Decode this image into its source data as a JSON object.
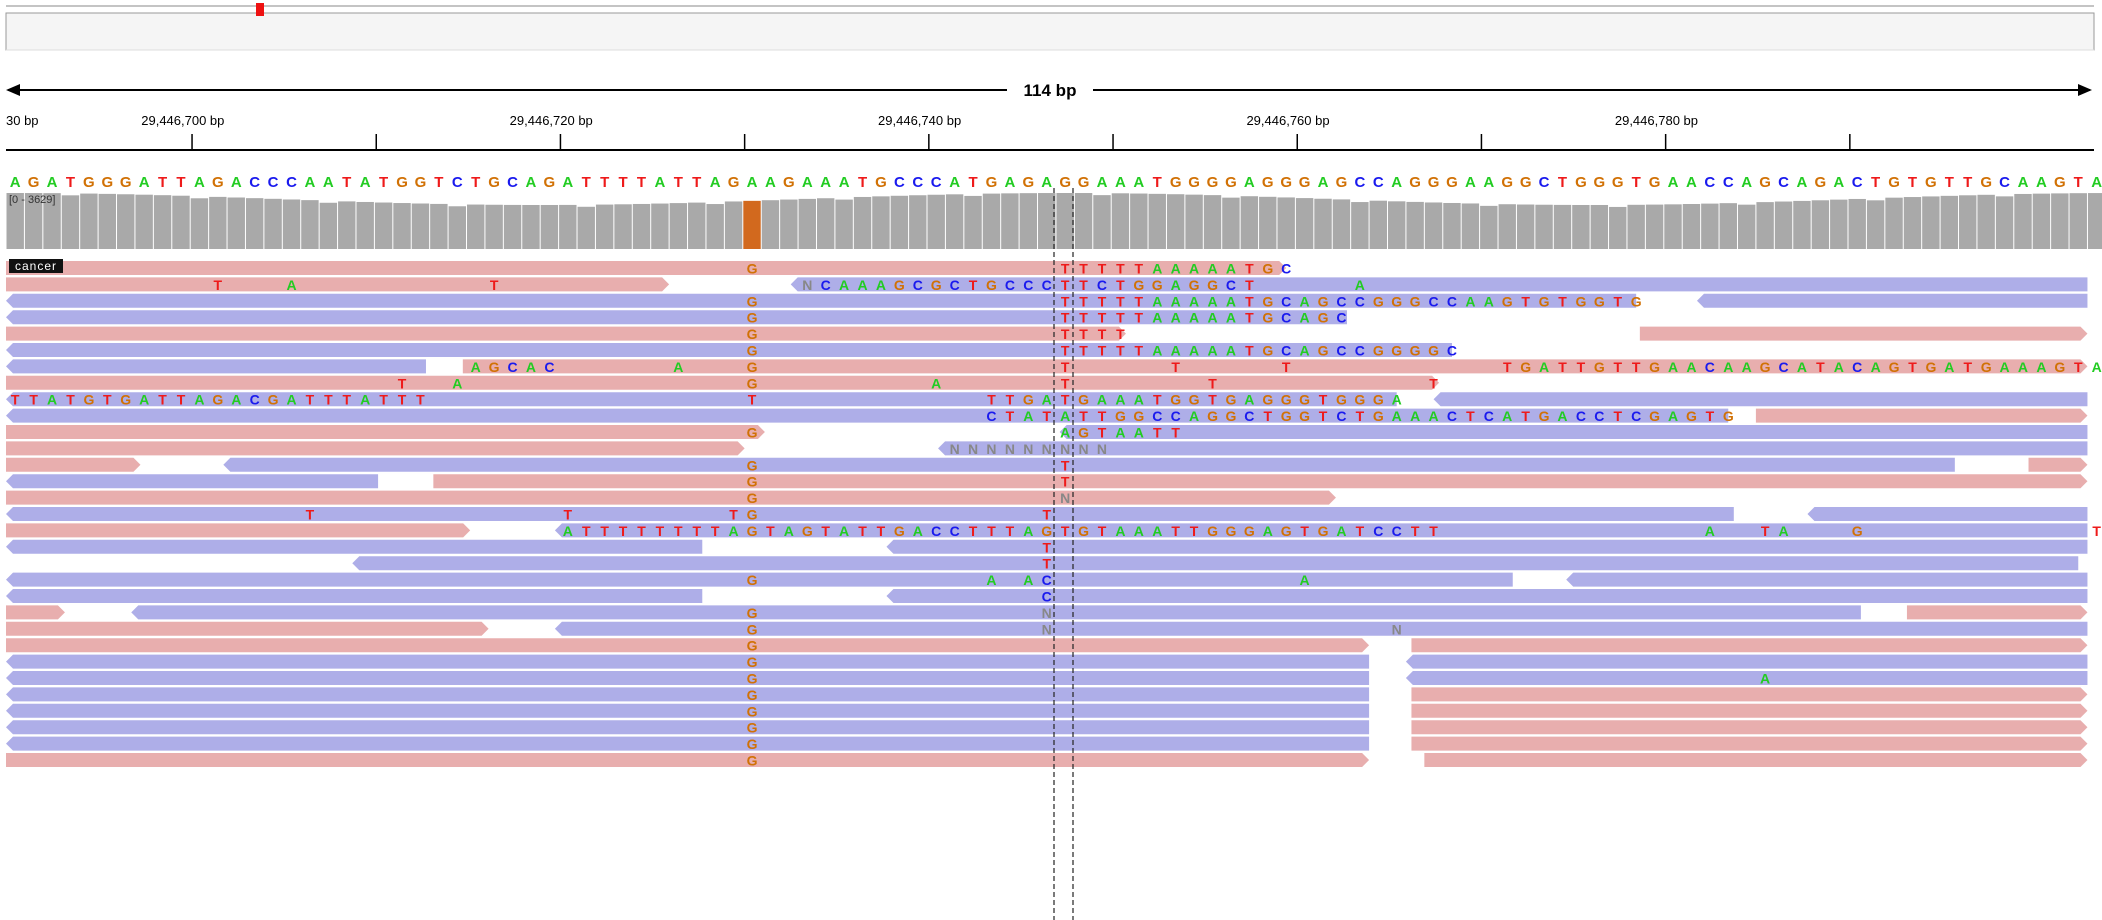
{
  "ruler": {
    "span_label": "114 bp",
    "tick_labels": [
      {
        "text": "30 bp",
        "pos": 29446690.4
      },
      {
        "text": "29,446,700 bp",
        "pos": 29446700
      },
      {
        "text": "29,446,720 bp",
        "pos": 29446720
      },
      {
        "text": "29,446,740 bp",
        "pos": 29446740
      },
      {
        "text": "29,446,760 bp",
        "pos": 29446760
      },
      {
        "text": "29,446,780 bp",
        "pos": 29446780
      }
    ],
    "minor_ticks": [
      29446700,
      29446710,
      29446720,
      29446730,
      29446740,
      29446750,
      29446760,
      29446770,
      29446780,
      29446790
    ]
  },
  "reference_sequence": "AGATGGGATTAGACCCAATATGGTCTGCAGATTTTATTAGAAGAAATGCCCATGAGAGGAAATGGGGAGGGAGCCAGGGAAGGCTGGGTGAACCAGCAGACTGTGTTGCAAGTA",
  "coverage_track": {
    "range_label": "[0 - 3629]",
    "highlight_base_index": 40,
    "colors": {
      "bar": "#a9a9a9",
      "highlight": "#d2691e"
    }
  },
  "alignment_track": {
    "sample_label": "cancer",
    "colors": {
      "forward": "#e8aeae",
      "reverse": "#aeaee8",
      "A": "#22cc22",
      "C": "#1a1aee",
      "G": "#d17105",
      "T": "#ee1a1a",
      "N": "#888888"
    },
    "rows": [
      {
        "reads": [
          {
            "s": 0,
            "e": 69.5,
            "d": "f"
          }
        ],
        "mis": "40:G;57:T;58:T;59:T;60:T;61:T;62:A;63:A;64:A;65:A;66:A;67:T;68:G;69:C"
      },
      {
        "reads": [
          {
            "s": 0,
            "e": 36,
            "d": "f"
          },
          {
            "s": 42.6,
            "e": 113,
            "d": "r"
          }
        ],
        "mis": "11:T;15:A;26:T;43:N;44:C;45:A;46:A;47:A;48:G;49:C;50:G;51:C;52:T;53:G;54:C;55:C;56:C;57:T;58:T;59:C;60:T;61:G;62:G;63:A;64:G;65:G;66:C;67:T;73:A"
      },
      {
        "reads": [
          {
            "s": 0,
            "e": 88.5,
            "d": "r"
          },
          {
            "s": 91.8,
            "e": 113,
            "d": "r"
          }
        ],
        "mis": "40:G;57:T;58:T;59:T;60:T;61:T;62:A;63:A;64:A;65:A;66:A;67:T;68:G;69:C;70:A;71:G;72:C;73:C;74:G;75:G;76:G;77:C;78:C;79:A;80:A;81:G;82:T;83:G;84:T;85:G;86:G;87:T;88:G"
      },
      {
        "reads": [
          {
            "s": 0,
            "e": 72.8,
            "d": "r"
          }
        ],
        "mis": "40:G;57:T;58:T;59:T;60:T;61:T;62:A;63:A;64:A;65:A;66:A;67:T;68:G;69:C;70:A;71:G;72:C"
      },
      {
        "reads": [
          {
            "s": 0,
            "e": 60.8,
            "d": "f"
          },
          {
            "s": 88.7,
            "e": 113,
            "d": "f"
          }
        ],
        "mis": "40:G;57:T;58:T;59:T;60:T"
      },
      {
        "reads": [
          {
            "s": 0,
            "e": 78.5,
            "d": "r"
          }
        ],
        "mis": "40:G;57:T;58:T;59:T;60:T;61:T;62:A;63:A;64:A;65:A;66:A;67:T;68:G;69:C;70:A;71:G;72:C;73:C;74:G;75:G;76:G;77:G;78:C"
      },
      {
        "reads": [
          {
            "s": 0,
            "e": 22.8,
            "d": "r"
          },
          {
            "s": 24.8,
            "e": 113,
            "d": "f"
          }
        ],
        "mis": "25:A;26:G;27:C;28:A;29:C;36:A;40:G;57:T;63:T;69:T;81:T;82:G;83:A;84:T;85:T;86:G;87:T;88:T;89:G;90:A;91:A;92:C;93:A;94:A;95:G;96:C;97:A;98:T;99:A;100:C;101:A;102:G;103:T;104:G;105:A;106:T;107:G;108:A;109:A;110:A;111:G;112:T;113:A"
      },
      {
        "reads": [
          {
            "s": 0,
            "e": 77.8,
            "d": "f"
          }
        ],
        "mis": "21:T;24:A;40:G;50:A;57:T;65:T;77:T"
      },
      {
        "reads": [
          {
            "s": 0,
            "e": 75.5,
            "d": "r"
          },
          {
            "s": 77.5,
            "e": 113,
            "d": "r"
          }
        ],
        "mis": "0:T;1:T;2:A;3:T;4:G;5:T;6:G;7:A;8:T;9:T;10:A;11:G;12:A;13:C;14:G;15:A;16:T;17:T;18:T;19:A;20:T;21:T;22:T;40:T;53:T;54:T;55:G;56:A;57:T;58:G;59:A;60:A;61:A;62:T;63:G;64:G;65:T;66:G;67:A;68:G;69:G;70:G;71:T;72:G;73:G;74:G;75:A"
      },
      {
        "reads": [
          {
            "s": 0,
            "e": 93.5,
            "d": "r"
          },
          {
            "s": 95,
            "e": 113,
            "d": "f"
          }
        ],
        "mis": "53:C;54:T;55:A;56:T;57:A;58:T;59:T;60:G;61:G;62:C;63:C;64:A;65:G;66:G;67:C;68:T;69:G;70:G;71:T;72:C;73:T;74:G;75:A;76:A;77:A;78:C;79:T;80:C;81:A;82:T;83:G;84:A;85:C;86:C;87:T;88:C;89:G;90:A;91:G;92:T;93:G"
      },
      {
        "reads": [
          {
            "s": 0,
            "e": 41.2,
            "d": "f"
          },
          {
            "s": 57.2,
            "e": 113,
            "d": "r"
          }
        ],
        "mis": "40:G;57:A;58:G;59:T;60:A;61:A;62:T;63:T"
      },
      {
        "reads": [
          {
            "s": 0,
            "e": 40.1,
            "d": "f"
          },
          {
            "s": 50.6,
            "e": 113,
            "d": "r"
          }
        ],
        "mis": "51:N;52:N;53:N;54:N;55:N;56:N;57:N;58:N;59:N"
      },
      {
        "reads": [
          {
            "s": 0,
            "e": 7.3,
            "d": "f"
          },
          {
            "s": 11.8,
            "e": 105.8,
            "d": "r"
          },
          {
            "s": 109.8,
            "e": 113,
            "d": "f"
          }
        ],
        "mis": "40:G;57:T"
      },
      {
        "reads": [
          {
            "s": 0,
            "e": 20.2,
            "d": "r"
          },
          {
            "s": 23.2,
            "e": 113,
            "d": "f"
          }
        ],
        "mis": "40:G;57:T"
      },
      {
        "reads": [
          {
            "s": 0,
            "e": 72.2,
            "d": "f"
          }
        ],
        "mis": "40:G;57:N"
      },
      {
        "reads": [
          {
            "s": 0,
            "e": 93.8,
            "d": "r"
          },
          {
            "s": 97.8,
            "e": 113,
            "d": "r"
          }
        ],
        "mis": "16:T;30:T;39:T;40:G;56:T"
      },
      {
        "reads": [
          {
            "s": 0,
            "e": 25.2,
            "d": "f"
          },
          {
            "s": 29.8,
            "e": 113,
            "d": "r"
          }
        ],
        "mis": "30:A;31:T;32:T;33:T;34:T;35:T;36:T;37:T;38:T;39:A;40:G;41:T;42:A;43:G;44:T;45:A;46:T;47:T;48:G;49:A;50:C;51:C;52:T;53:T;54:T;55:A;56:G;57:T;58:G;59:T;60:A;61:A;62:A;63:T;64:T;65:G;66:G;67:G;68:A;69:G;70:T;71:G;72:A;73:T;74:C;75:C;76:T;77:T;92:A;95:T;96:A;100:G;113:T"
      },
      {
        "reads": [
          {
            "s": 0,
            "e": 37.8,
            "d": "r"
          },
          {
            "s": 47.8,
            "e": 113,
            "d": "r"
          }
        ],
        "mis": "56:T"
      },
      {
        "reads": [
          {
            "s": 18.8,
            "e": 112.5,
            "d": "r"
          }
        ],
        "mis": "56:T"
      },
      {
        "reads": [
          {
            "s": 0,
            "e": 81.8,
            "d": "r"
          },
          {
            "s": 84.7,
            "e": 113,
            "d": "r"
          }
        ],
        "mis": "40:G;53:A;55:A;56:C;70:A"
      },
      {
        "reads": [
          {
            "s": 0,
            "e": 37.8,
            "d": "r"
          },
          {
            "s": 47.8,
            "e": 113,
            "d": "r"
          }
        ],
        "mis": "56:C"
      },
      {
        "reads": [
          {
            "s": 0,
            "e": 3.2,
            "d": "f"
          },
          {
            "s": 6.8,
            "e": 100.7,
            "d": "r"
          },
          {
            "s": 103.2,
            "e": 113,
            "d": "f"
          }
        ],
        "mis": "40:G;56:N"
      },
      {
        "reads": [
          {
            "s": 0,
            "e": 26.2,
            "d": "f"
          },
          {
            "s": 29.8,
            "e": 113,
            "d": "r"
          }
        ],
        "mis": "40:G;56:N;75:N"
      },
      {
        "reads": [
          {
            "s": 0,
            "e": 74,
            "d": "f"
          },
          {
            "s": 76.3,
            "e": 113,
            "d": "f"
          }
        ],
        "mis": "40:G"
      },
      {
        "reads": [
          {
            "s": 0,
            "e": 74,
            "d": "r"
          },
          {
            "s": 76,
            "e": 113,
            "d": "r"
          }
        ],
        "mis": "40:G"
      },
      {
        "reads": [
          {
            "s": 0,
            "e": 74,
            "d": "r"
          },
          {
            "s": 76,
            "e": 113,
            "d": "r"
          }
        ],
        "mis": "40:G;95:A"
      },
      {
        "reads": [
          {
            "s": 0,
            "e": 74,
            "d": "r"
          },
          {
            "s": 76.3,
            "e": 113,
            "d": "f"
          }
        ],
        "mis": "40:G"
      },
      {
        "reads": [
          {
            "s": 0,
            "e": 74,
            "d": "r"
          },
          {
            "s": 76.3,
            "e": 113,
            "d": "f"
          }
        ],
        "mis": "40:G"
      },
      {
        "reads": [
          {
            "s": 0,
            "e": 74,
            "d": "r"
          },
          {
            "s": 76.3,
            "e": 113,
            "d": "f"
          }
        ],
        "mis": "40:G"
      },
      {
        "reads": [
          {
            "s": 0,
            "e": 74,
            "d": "r"
          },
          {
            "s": 76.3,
            "e": 113,
            "d": "f"
          }
        ],
        "mis": "40:G"
      },
      {
        "reads": [
          {
            "s": 0,
            "e": 74,
            "d": "f"
          },
          {
            "s": 77,
            "e": 113,
            "d": "f"
          }
        ],
        "mis": "40:G"
      }
    ]
  }
}
